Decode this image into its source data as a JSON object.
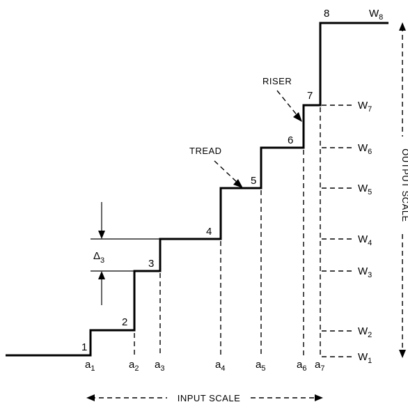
{
  "input_levels": [
    {
      "base": "a",
      "sub": "1"
    },
    {
      "base": "a",
      "sub": "2"
    },
    {
      "base": "a",
      "sub": "3"
    },
    {
      "base": "a",
      "sub": "4"
    },
    {
      "base": "a",
      "sub": "5"
    },
    {
      "base": "a",
      "sub": "6"
    },
    {
      "base": "a",
      "sub": "7"
    }
  ],
  "output_levels": [
    {
      "base": "W",
      "sub": "1"
    },
    {
      "base": "W",
      "sub": "2"
    },
    {
      "base": "W",
      "sub": "3"
    },
    {
      "base": "W",
      "sub": "4"
    },
    {
      "base": "W",
      "sub": "5"
    },
    {
      "base": "W",
      "sub": "6"
    },
    {
      "base": "W",
      "sub": "7"
    },
    {
      "base": "W",
      "sub": "8"
    }
  ],
  "step_numbers": [
    "1",
    "2",
    "3",
    "4",
    "5",
    "6",
    "7",
    "8"
  ],
  "labels": {
    "tread": "TREAD",
    "riser": "RISER",
    "delta_base": "Δ",
    "delta_sub": "3",
    "input_scale": "INPUT SCALE",
    "output_scale": "OUTPUT SCALE"
  }
}
